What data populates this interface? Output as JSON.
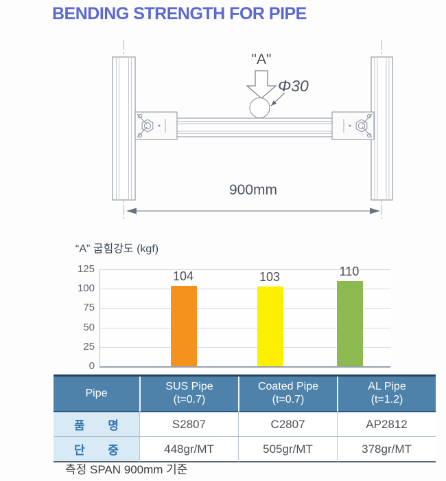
{
  "header": {
    "title": "BENDING STRENGTH FOR PIPE"
  },
  "diagram": {
    "load_label": "\"A\"",
    "diameter_label": "Φ30",
    "span_label": "900mm"
  },
  "chart": {
    "title": "“A” 굽힘강도 (kgf)"
  },
  "chart_data": {
    "type": "bar",
    "title": "“A” 굽힘강도 (kgf)",
    "categories": [
      "SUS Pipe (t=0.7)",
      "Coated Pipe (t=0.7)",
      "AL Pipe (t=1.2)"
    ],
    "values": [
      104,
      103,
      110
    ],
    "data_labels": [
      "104",
      "103",
      "110"
    ],
    "bar_colors": [
      "#F5921E",
      "#FCEF00",
      "#8CBA51"
    ],
    "xlabel": "",
    "ylabel": "kgf",
    "ylim": [
      0,
      125
    ],
    "yticks": [
      0,
      25,
      50,
      75,
      100,
      125
    ],
    "grid": true,
    "legend": false
  },
  "table": {
    "columns": [
      {
        "label": "Pipe",
        "sub": ""
      },
      {
        "label": "SUS Pipe",
        "sub": "(t=0.7)"
      },
      {
        "label": "Coated Pipe",
        "sub": "(t=0.7)"
      },
      {
        "label": "AL Pipe",
        "sub": "(t=1.2)"
      }
    ],
    "rows": [
      {
        "label": "품 명",
        "values": [
          "S2807",
          "C2807",
          "AP2812"
        ]
      },
      {
        "label": "단 중",
        "values": [
          "448gr/MT",
          "505gr/MT",
          "378gr/MT"
        ]
      }
    ]
  },
  "footer": {
    "note": "측정 SPAN 900mm 기준"
  },
  "appearance": {
    "title_color": "#5a69d2",
    "table_header_bg": "#4e82aa",
    "table_label_bg": "#d9eaf7",
    "table_label_color": "#2f72b0"
  }
}
